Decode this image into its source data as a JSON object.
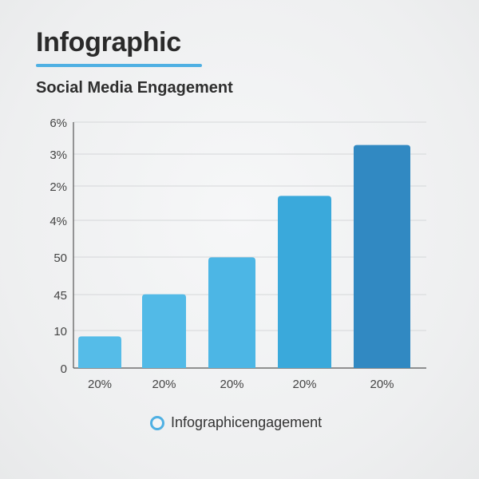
{
  "header": {
    "title": "Infographic",
    "subtitle": "Social Media Engagement"
  },
  "colors": {
    "accent": "#4fb0e3",
    "bars": [
      "#55bce8",
      "#52bae7",
      "#4cb6e5",
      "#3aa9db",
      "#3189c2"
    ],
    "grid": "#d5d7d9",
    "axis": "#555555"
  },
  "chart_data": {
    "type": "bar",
    "categories": [
      "20%",
      "20%",
      "20%",
      "20%",
      "20%"
    ],
    "y_tick_labels": [
      "0",
      "10",
      "45",
      "50",
      "4%",
      "2%",
      "3%",
      "6%"
    ],
    "series": [
      {
        "name": "Infographicengagement",
        "values": [
          0.9,
          2.1,
          3.15,
          4.9,
          6.35
        ]
      }
    ],
    "ylim": [
      0,
      7
    ],
    "grid": true,
    "legend": "bottom"
  },
  "legend": {
    "label": "Infographicengagement"
  }
}
